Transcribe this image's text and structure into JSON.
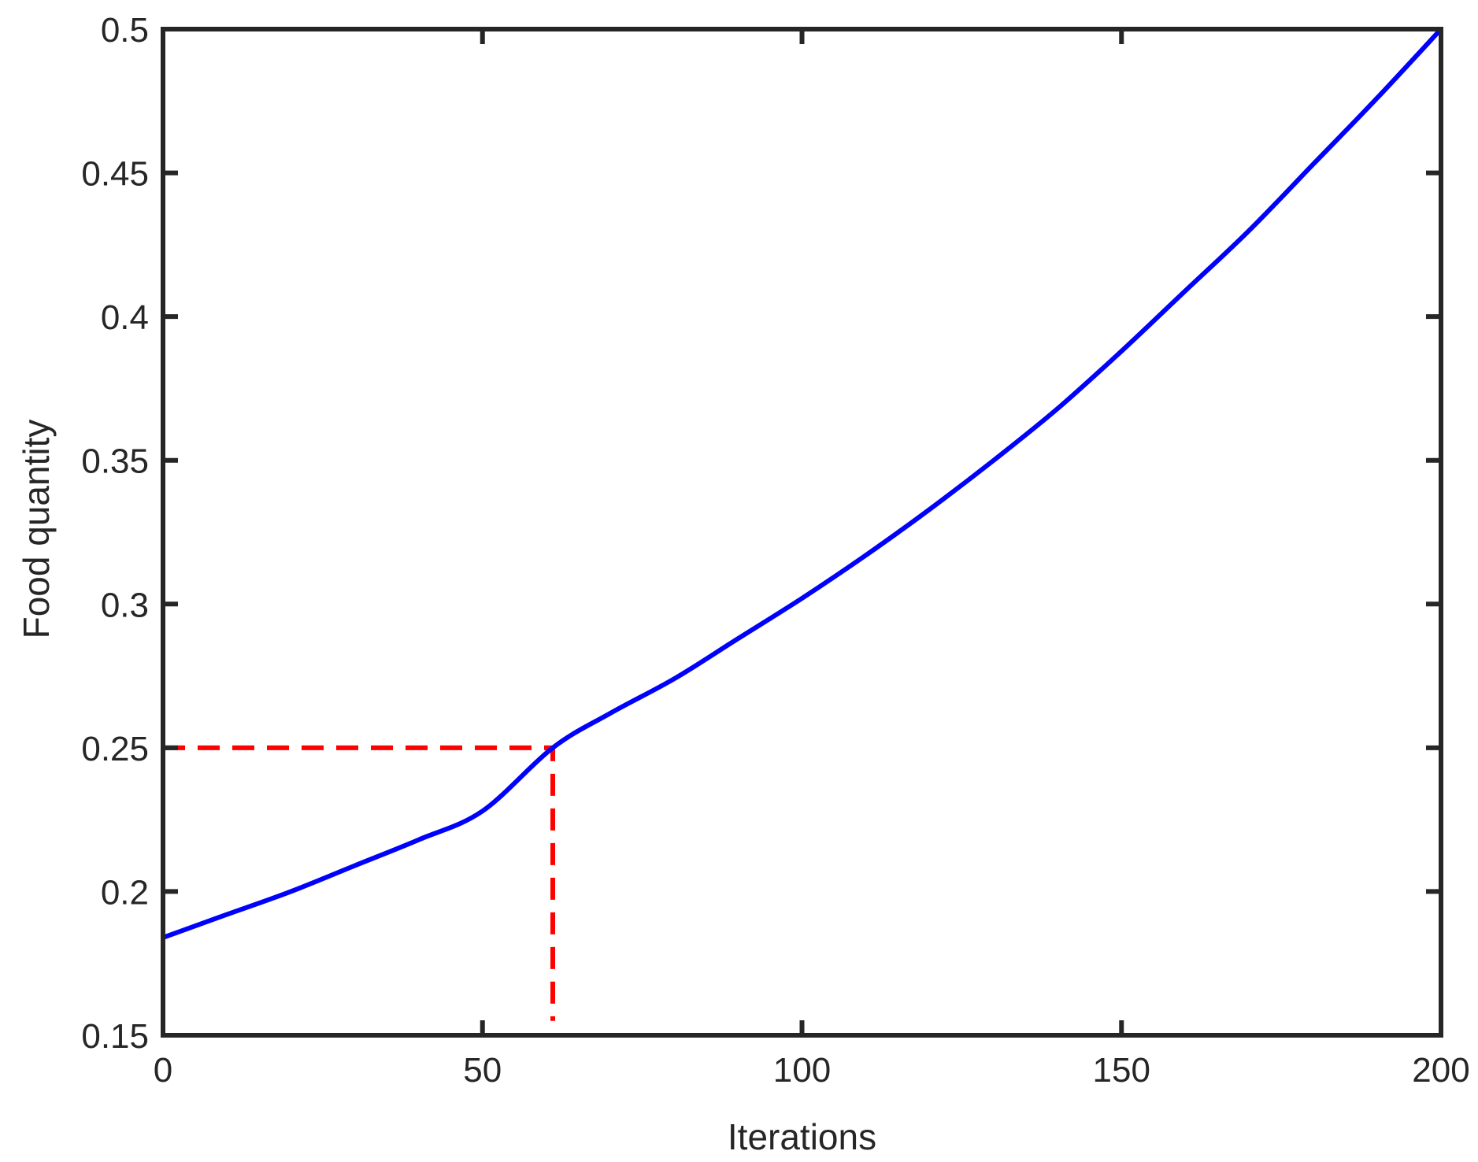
{
  "chart_data": {
    "type": "line",
    "title": "",
    "xlabel": "Iterations",
    "ylabel": "Food quantity",
    "xlim": [
      0,
      200
    ],
    "ylim": [
      0.15,
      0.5
    ],
    "xticks": [
      0,
      50,
      100,
      150,
      200
    ],
    "xtick_labels": [
      "0",
      "50",
      "100",
      "150",
      "200"
    ],
    "yticks": [
      0.15,
      0.2,
      0.25,
      0.3,
      0.35,
      0.4,
      0.45,
      0.5
    ],
    "ytick_labels": [
      "0.15",
      "0.2",
      "0.25",
      "0.3",
      "0.35",
      "0.4",
      "0.45",
      "0.5"
    ],
    "grid": false,
    "series": [
      {
        "color": "#0000ff",
        "style": "solid",
        "x": [
          0,
          10,
          20,
          30,
          40,
          50,
          61,
          70,
          80,
          90,
          100,
          110,
          120,
          130,
          140,
          150,
          160,
          170,
          180,
          190,
          200
        ],
        "y": [
          0.184,
          0.192,
          0.2,
          0.209,
          0.218,
          0.228,
          0.25,
          0.262,
          0.274,
          0.288,
          0.302,
          0.317,
          0.333,
          0.35,
          0.368,
          0.388,
          0.409,
          0.43,
          0.453,
          0.476,
          0.5
        ]
      }
    ],
    "reference_lines": [
      {
        "color": "#ff0000",
        "style": "dashed",
        "x": [
          0,
          61,
          61
        ],
        "y": [
          0.25,
          0.25,
          0.155
        ]
      }
    ]
  }
}
